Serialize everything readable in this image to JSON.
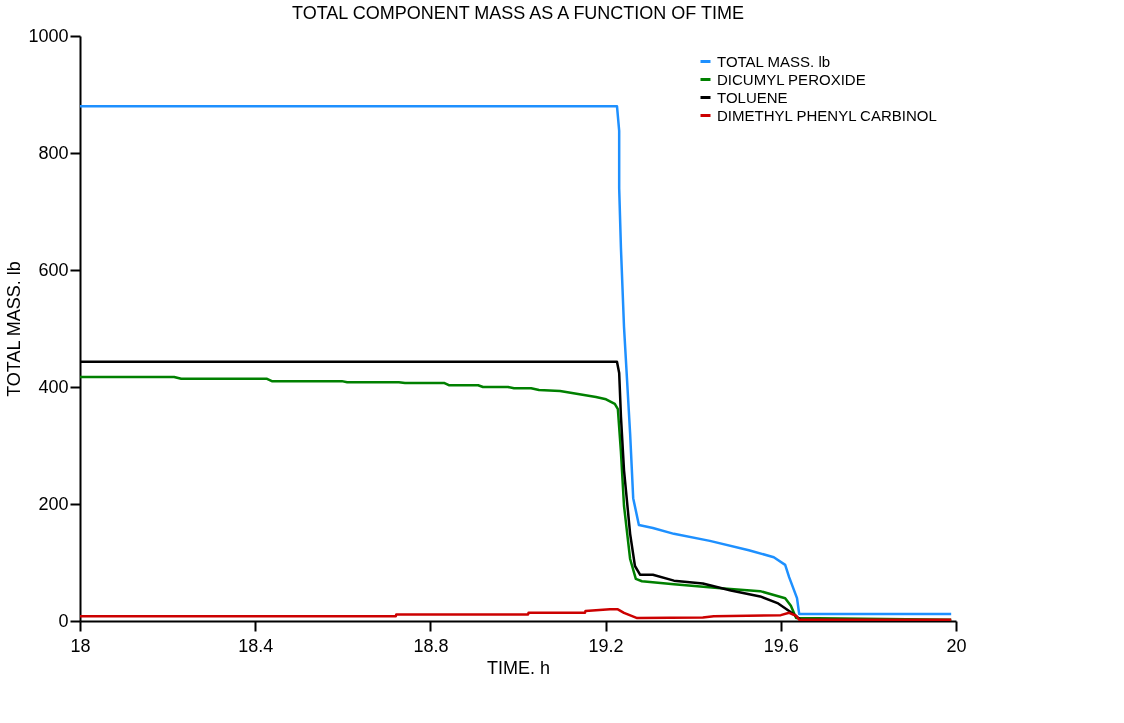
{
  "chart_data": {
    "type": "line",
    "title": "TOTAL COMPONENT MASS AS A FUNCTION OF TIME",
    "xlabel": "TIME. h",
    "ylabel": "TOTAL MASS. lb",
    "xlim": [
      18,
      20
    ],
    "ylim": [
      0,
      1000
    ],
    "xticks": [
      18,
      18.4,
      18.8,
      19.2,
      19.6,
      20
    ],
    "yticks": [
      0,
      200,
      400,
      600,
      800,
      1000
    ],
    "grid": false,
    "legend": "top right",
    "marker": "none",
    "line_style": "solid",
    "series": [
      {
        "name": "TOTAL MASS. lb",
        "color": "#1e90ff",
        "x": [
          18,
          19.226,
          19.231,
          19.231,
          19.235,
          19.242,
          19.256,
          19.263,
          19.276,
          19.308,
          19.356,
          19.438,
          19.527,
          19.584,
          19.61,
          19.619,
          19.637,
          19.642,
          19.989
        ],
        "values": [
          880,
          880,
          838,
          740,
          638,
          503,
          320,
          210,
          164,
          159,
          149,
          137,
          121,
          109,
          96,
          75,
          39,
          12,
          12
        ]
      },
      {
        "name": "DICUMYL PEROXIDE",
        "color": "#008000",
        "x": [
          18,
          18.215,
          18.231,
          18.427,
          18.438,
          18.598,
          18.61,
          18.728,
          18.742,
          18.831,
          18.842,
          18.909,
          18.92,
          18.977,
          18.991,
          19.03,
          19.048,
          19.096,
          19.137,
          19.178,
          19.201,
          19.221,
          19.228,
          19.235,
          19.242,
          19.256,
          19.269,
          19.283,
          19.356,
          19.463,
          19.553,
          19.61,
          19.623,
          19.635,
          19.989
        ],
        "values": [
          417,
          417,
          414,
          414,
          410,
          410,
          408,
          408,
          407,
          407,
          403,
          403,
          400,
          400,
          398,
          398,
          395,
          393,
          388,
          383,
          379,
          371,
          362,
          289,
          197,
          106,
          72,
          68,
          63,
          56,
          51,
          39,
          26,
          5,
          2
        ]
      },
      {
        "name": "TOLUENE",
        "color": "#000000",
        "x": [
          18,
          19.226,
          19.231,
          19.235,
          19.242,
          19.256,
          19.267,
          19.279,
          19.308,
          19.356,
          19.422,
          19.486,
          19.553,
          19.594,
          19.619,
          19.635,
          19.645,
          19.989
        ],
        "values": [
          443,
          443,
          424,
          350,
          258,
          149,
          94,
          79,
          79,
          69,
          64,
          52,
          42,
          30,
          17,
          8,
          2,
          1
        ]
      },
      {
        "name": "DIMETHYL PHENYL CARBINOL",
        "color": "#cc0000",
        "x": [
          18,
          18.721,
          18.722,
          19.023,
          19.024,
          19.153,
          19.154,
          19.21,
          19.228,
          19.242,
          19.272,
          19.422,
          19.447,
          19.6,
          19.619,
          19.635,
          19.642,
          19.989
        ],
        "values": [
          8,
          8,
          11,
          11,
          14,
          14,
          17,
          20,
          20,
          14,
          5,
          6,
          8,
          10,
          14,
          9,
          2,
          2
        ]
      }
    ]
  }
}
